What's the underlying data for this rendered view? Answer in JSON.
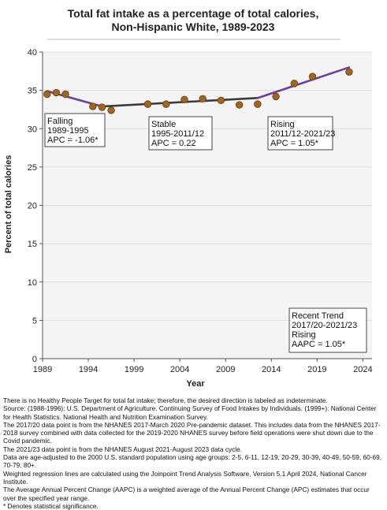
{
  "chart_data": {
    "type": "line",
    "title": "Total fat intake as a percentage of total calories,",
    "subtitle": "Non-Hispanic White,  1989-2023",
    "xlabel": "Year",
    "ylabel": "Percent of total calories",
    "xlim": [
      1989,
      2025
    ],
    "ylim": [
      0,
      40
    ],
    "xticks": [
      1989,
      1994,
      1999,
      2004,
      2009,
      2014,
      2019,
      2024
    ],
    "yticks": [
      0,
      5,
      10,
      15,
      20,
      25,
      30,
      35,
      40
    ],
    "grid": "horizontal",
    "observed": {
      "x": [
        1989.5,
        1990.5,
        1991.5,
        1994.5,
        1995.5,
        1996.5,
        2000.5,
        2002.5,
        2004.5,
        2006.5,
        2008.5,
        2010.5,
        2012.5,
        2014.5,
        2016.5,
        2018.5,
        2022.5
      ],
      "y": [
        34.5,
        34.7,
        34.5,
        32.9,
        32.8,
        32.4,
        33.2,
        33.2,
        33.8,
        33.9,
        33.7,
        33.1,
        33.2,
        34.2,
        35.9,
        36.8,
        37.4
      ]
    },
    "trend_segments": [
      {
        "x": [
          1989.5,
          1995.5
        ],
        "y": [
          34.9,
          32.9
        ],
        "color": "#6a3fa0"
      },
      {
        "x": [
          1995.5,
          2012.5
        ],
        "y": [
          32.9,
          34.0
        ],
        "color": "#3a3a3a"
      },
      {
        "x": [
          2012.5,
          2022.5
        ],
        "y": [
          34.0,
          38.0
        ],
        "color": "#6a3fa0"
      }
    ],
    "annotations": [
      {
        "lines": [
          "Falling",
          "1989-1995",
          "APC = -1.06*"
        ]
      },
      {
        "lines": [
          "Stable",
          "1995-2011/12",
          "APC =  0.22"
        ]
      },
      {
        "lines": [
          "Rising",
          "2011/12-2021/23",
          "APC =  1.05*"
        ]
      },
      {
        "lines": [
          "Recent Trend",
          "2017/20-2021/23",
          "Rising",
          "AAPC =  1.05*"
        ]
      }
    ],
    "colors": {
      "marker_fill": "#a0651e",
      "marker_stroke": "#6b3f10",
      "grid": "#dddddd",
      "plot_bg": "#f4f4f4"
    }
  },
  "footnotes": [
    "There is no Healthy People Target for total fat intake; therefore, the desired direction is labeled as indeterminate.",
    "Source: (1988-1996): U.S. Department of Agriculture. Continuing Survey of Food Intakes by Individuals. (1999+): National Center for Health Statistics. National Health and Nutrition Examination Survey.",
    "The 2017/20 data point is from the NHANES 2017-March 2020 Pre-pandemic dataset. This includes data from the NHANES 2017-2018 survey combined with data collected for the 2019-2020 NHANES survey before field operations were shut down due to the Covid pandemic.",
    "The 2021/23 data point is from the NHANES August 2021-August 2023 data cycle.",
    "Data are age-adjusted to the 2000 U.S. standard population using age groups: 2-5, 6-11, 12-19, 20-29, 30-39, 40-49, 50-59, 60-69, 70-79, 80+.",
    "Weighted regression lines are calculated using the Joinpoint Trend Analysis Software, Version 5.1 April 2024, National Cancer Institute.",
    "The Average Annual Percent Change (AAPC) is a weighted average of the Annual Percent Change (APC) estimates that occur over the specified year range.",
    "* Denotes statistical significance."
  ]
}
